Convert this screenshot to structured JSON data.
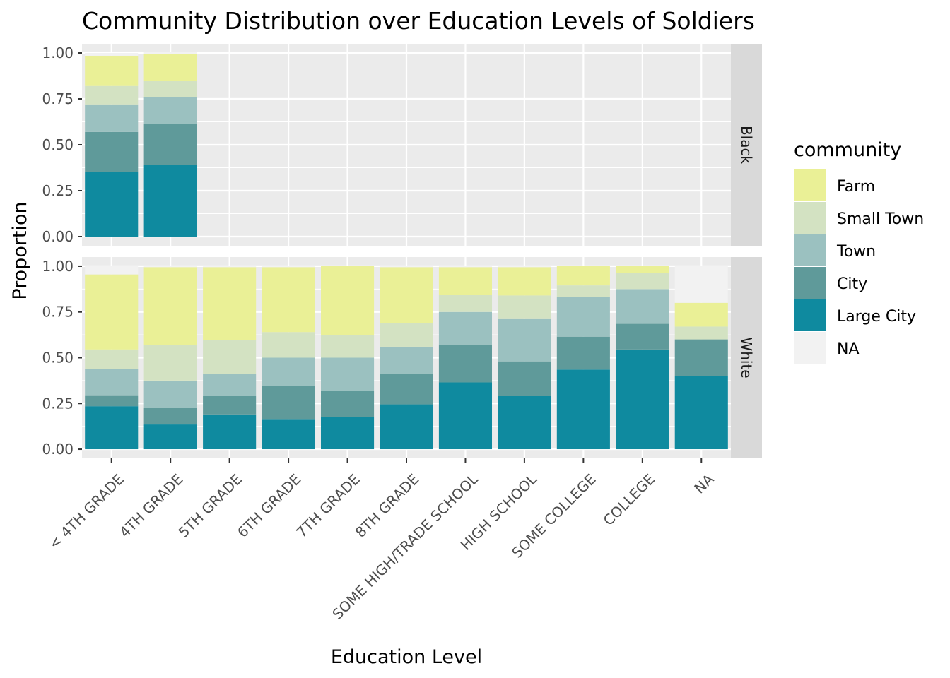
{
  "chart_data": {
    "type": "bar",
    "stacked": true,
    "title": "Community Distribution over Education Levels of Soldiers",
    "xlabel": "Education Level",
    "ylabel": "Proportion",
    "ylim": [
      0,
      1
    ],
    "y_ticks": [
      "0.00",
      "0.25",
      "0.50",
      "0.75",
      "1.00"
    ],
    "y_tick_values": [
      0,
      0.25,
      0.5,
      0.75,
      1.0
    ],
    "grid": true,
    "legend": {
      "title": "community",
      "position": "right"
    },
    "categories": [
      "< 4TH GRADE",
      "4TH GRADE",
      "5TH GRADE",
      "6TH GRADE",
      "7TH GRADE",
      "8TH GRADE",
      "SOME HIGH/TRADE SCHOOL",
      "HIGH SCHOOL",
      "SOME COLLEGE",
      "COLLEGE",
      "NA"
    ],
    "series_meta": [
      {
        "name": "Farm",
        "color": "#EAF096"
      },
      {
        "name": "Small Town",
        "color": "#D3E2C2"
      },
      {
        "name": "Town",
        "color": "#9BC1C0"
      },
      {
        "name": "City",
        "color": "#5F9A9A"
      },
      {
        "name": "Large City",
        "color": "#0F8A9F"
      },
      {
        "name": "NA",
        "color": "#F2F2F2"
      }
    ],
    "panels": [
      {
        "facet": "Black",
        "series": [
          {
            "name": "Large City",
            "values": [
              0.35,
              0.39,
              null,
              null,
              null,
              null,
              null,
              null,
              null,
              null,
              null
            ]
          },
          {
            "name": "City",
            "values": [
              0.22,
              0.225,
              null,
              null,
              null,
              null,
              null,
              null,
              null,
              null,
              null
            ]
          },
          {
            "name": "Town",
            "values": [
              0.15,
              0.145,
              null,
              null,
              null,
              null,
              null,
              null,
              null,
              null,
              null
            ]
          },
          {
            "name": "Small Town",
            "values": [
              0.1,
              0.09,
              null,
              null,
              null,
              null,
              null,
              null,
              null,
              null,
              null
            ]
          },
          {
            "name": "Farm",
            "values": [
              0.165,
              0.145,
              null,
              null,
              null,
              null,
              null,
              null,
              null,
              null,
              null
            ]
          },
          {
            "name": "NA",
            "values": [
              0.015,
              0.01,
              null,
              null,
              null,
              null,
              null,
              null,
              null,
              null,
              null
            ]
          }
        ]
      },
      {
        "facet": "White",
        "series": [
          {
            "name": "Large City",
            "values": [
              0.235,
              0.135,
              0.19,
              0.165,
              0.175,
              0.245,
              0.365,
              0.29,
              0.435,
              0.545,
              0.4
            ]
          },
          {
            "name": "City",
            "values": [
              0.06,
              0.09,
              0.1,
              0.18,
              0.145,
              0.165,
              0.205,
              0.19,
              0.18,
              0.14,
              0.2
            ]
          },
          {
            "name": "Town",
            "values": [
              0.145,
              0.15,
              0.12,
              0.155,
              0.18,
              0.15,
              0.18,
              0.235,
              0.215,
              0.19,
              0.0
            ]
          },
          {
            "name": "Small Town",
            "values": [
              0.105,
              0.195,
              0.185,
              0.14,
              0.125,
              0.13,
              0.095,
              0.125,
              0.065,
              0.09,
              0.07
            ]
          },
          {
            "name": "Farm",
            "values": [
              0.41,
              0.425,
              0.4,
              0.355,
              0.375,
              0.305,
              0.15,
              0.155,
              0.105,
              0.035,
              0.13
            ]
          },
          {
            "name": "NA",
            "values": [
              0.045,
              0.005,
              0.005,
              0.005,
              0.0,
              0.005,
              0.005,
              0.005,
              0.0,
              0.0,
              0.2
            ]
          }
        ]
      }
    ]
  }
}
